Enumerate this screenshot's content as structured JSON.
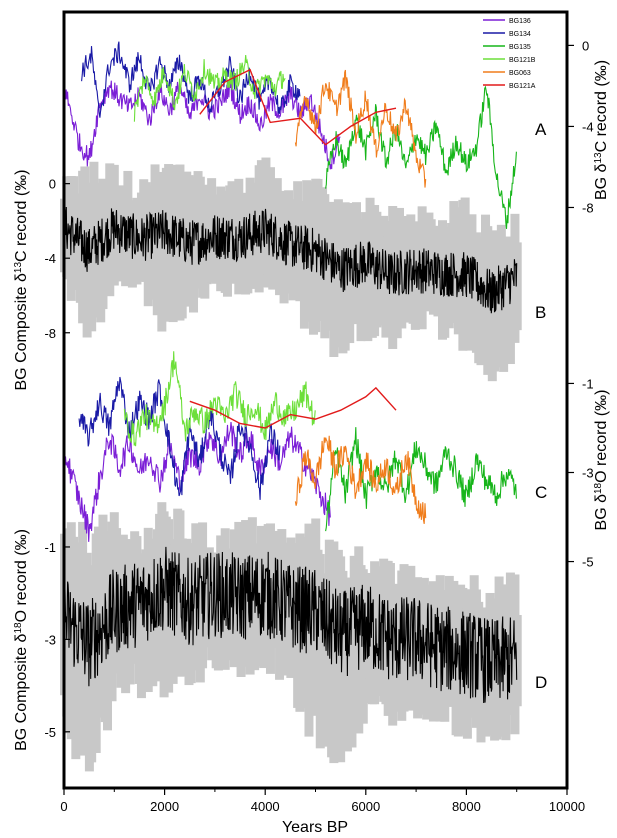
{
  "chart_data": {
    "type": "line",
    "x_axis": {
      "label": "Years BP",
      "range": [
        0,
        10000
      ],
      "ticks": [
        "0",
        "2000",
        "4000",
        "6000",
        "8000",
        "10000"
      ]
    },
    "left_axes": [
      {
        "label": "BG Composite δ13C record (‰)",
        "label_parts": [
          "BG Composite δ",
          "13",
          "C record (‰)"
        ],
        "range": [
          -11.5,
          1.0
        ],
        "ticks": [
          0,
          -4,
          -8
        ]
      },
      {
        "label": "BG Composite δ18O record (‰)",
        "label_parts": [
          "BG Composite δ",
          "18",
          "O record (‰)"
        ],
        "range": [
          -6.0,
          -0.2
        ],
        "ticks": [
          -1,
          -3,
          -5
        ]
      }
    ],
    "right_axes": [
      {
        "label": "BG δ13C record (‰)",
        "label_parts": [
          "BG δ",
          "13",
          "C record (‰)"
        ],
        "range": [
          -10.0,
          1.5
        ],
        "ticks": [
          0,
          -4,
          -8
        ]
      },
      {
        "label": "BG δ18O record (‰)",
        "label_parts": [
          "BG δ",
          "18",
          "O record (‰)"
        ],
        "range": [
          -6.2,
          0.2
        ],
        "ticks": [
          -1,
          -3,
          -5
        ]
      }
    ],
    "panel_labels": [
      "A",
      "B",
      "C",
      "D"
    ],
    "legend": {
      "placement": "top-right",
      "entries": [
        {
          "name": "BG136",
          "color": "#7b1fd6"
        },
        {
          "name": "BG134",
          "color": "#1a1aa6"
        },
        {
          "name": "BG135",
          "color": "#17b51a"
        },
        {
          "name": "BG121B",
          "color": "#6ddf3a"
        },
        {
          "name": "BG063",
          "color": "#f07d1c"
        },
        {
          "name": "BG121A",
          "color": "#e21b1b"
        }
      ]
    },
    "panels": {
      "A": {
        "kind": "individual",
        "y_axis": "right_0",
        "series": [
          {
            "name": "BG136",
            "color": "#7b1fd6",
            "x": [
              30,
              300,
              500,
              700,
              900,
              1100,
              1300,
              1500,
              1700,
              1900,
              2100,
              2300,
              2500,
              2700,
              2900,
              3100,
              3300,
              3500,
              3700,
              3900,
              4100,
              4300,
              4500,
              4700,
              4900,
              5100,
              5300,
              5500
            ],
            "y": [
              -2.3,
              -4.8,
              -5.6,
              -3.0,
              -2.0,
              -2.6,
              -3.1,
              -2.5,
              -3.7,
              -2.2,
              -3.2,
              -2.0,
              -3.6,
              -2.4,
              -3.3,
              -2.9,
              -2.0,
              -3.4,
              -2.8,
              -4.0,
              -2.8,
              -3.3,
              -2.4,
              -3.4,
              -2.6,
              -4.2,
              -5.8,
              -4.4
            ]
          },
          {
            "name": "BG134",
            "color": "#1a1aa6",
            "x": [
              350,
              550,
              700,
              900,
              1100,
              1300,
              1500,
              1700,
              1900,
              2100,
              2300,
              2500,
              2700,
              2900,
              3100,
              3300,
              3500,
              3700,
              3900,
              4100,
              4300,
              4500,
              4700
            ],
            "y": [
              -1.3,
              -0.5,
              -3.5,
              -1.0,
              -0.3,
              -1.9,
              -0.6,
              -2.4,
              -0.8,
              -2.0,
              -0.7,
              -2.6,
              -1.6,
              -3.1,
              -2.1,
              -1.0,
              -2.7,
              -1.2,
              -2.9,
              -1.6,
              -3.3,
              -1.9,
              -2.4
            ]
          },
          {
            "name": "BG135",
            "color": "#17b51a",
            "x": [
              5200,
              5400,
              5600,
              5800,
              6000,
              6200,
              6400,
              6600,
              6800,
              7000,
              7200,
              7400,
              7600,
              7800,
              8000,
              8200,
              8400,
              8600,
              8800,
              9000
            ],
            "y": [
              -6.8,
              -4.6,
              -6.0,
              -3.6,
              -5.2,
              -3.3,
              -5.8,
              -4.1,
              -6.1,
              -4.4,
              -5.5,
              -3.9,
              -6.3,
              -4.7,
              -5.9,
              -5.0,
              -2.0,
              -6.5,
              -8.7,
              -5.3
            ]
          },
          {
            "name": "BG121B",
            "color": "#6ddf3a",
            "x": [
              1400,
              1600,
              1800,
              2000,
              2200,
              2400,
              2600,
              2800,
              3000,
              3200,
              3400,
              3600,
              3800,
              4000,
              4200,
              4400
            ],
            "y": [
              -3.3,
              -1.6,
              -2.7,
              -1.2,
              -2.9,
              -1.3,
              -2.4,
              -1.1,
              -2.0,
              -1.5,
              -1.8,
              -0.9,
              -2.3,
              -1.6,
              -2.1,
              -1.4
            ]
          },
          {
            "name": "BG063",
            "color": "#f07d1c",
            "x": [
              4600,
              4800,
              5000,
              5200,
              5400,
              5600,
              5800,
              6000,
              6200,
              6400,
              6600,
              6800,
              7000,
              7200
            ],
            "y": [
              -5.0,
              -2.4,
              -4.1,
              -1.8,
              -3.2,
              -1.6,
              -4.4,
              -2.5,
              -5.2,
              -3.0,
              -4.6,
              -2.8,
              -5.5,
              -6.8
            ]
          },
          {
            "name": "BG121A",
            "color": "#e21b1b",
            "x": [
              2700,
              3200,
              3700,
              4100,
              4700,
              5200,
              5700,
              6200,
              6600
            ],
            "y": [
              -3.4,
              -1.8,
              -1.2,
              -3.8,
              -3.6,
              -4.9,
              -4.0,
              -3.3,
              -3.1
            ]
          }
        ]
      },
      "B": {
        "kind": "composite",
        "y_axis": "left_0",
        "x": [
          0,
          500,
          1000,
          1500,
          2000,
          2500,
          3000,
          3500,
          4000,
          4500,
          5000,
          5500,
          6000,
          6500,
          7000,
          7500,
          8000,
          8500,
          9000
        ],
        "mean": [
          -2.3,
          -3.6,
          -2.4,
          -3.0,
          -2.6,
          -3.2,
          -2.8,
          -2.9,
          -2.5,
          -3.3,
          -3.6,
          -4.6,
          -4.2,
          -4.9,
          -4.6,
          -4.8,
          -4.9,
          -5.9,
          -5.0
        ],
        "lower": [
          -5.0,
          -7.5,
          -5.5,
          -5.0,
          -7.0,
          -6.0,
          -5.5,
          -5.3,
          -5.0,
          -6.0,
          -7.5,
          -8.5,
          -7.5,
          -8.0,
          -7.0,
          -7.5,
          -8.0,
          -9.5,
          -8.5
        ],
        "upper": [
          -0.5,
          0.2,
          0.3,
          -0.5,
          0.4,
          -0.2,
          -0.5,
          -0.4,
          0.5,
          -0.7,
          -0.8,
          -2.0,
          -1.5,
          -2.2,
          -2.0,
          -2.3,
          -1.5,
          -3.0,
          -2.5
        ]
      },
      "C": {
        "kind": "individual",
        "y_axis": "right_1",
        "series": [
          {
            "name": "BG136",
            "color": "#7b1fd6",
            "x": [
              30,
              300,
              500,
              700,
              900,
              1100,
              1300,
              1500,
              1700,
              1900,
              2100,
              2300,
              2500,
              2700,
              2900,
              3100,
              3300,
              3500,
              3700,
              3900,
              4100,
              4300,
              4500,
              4700,
              4900,
              5100,
              5300
            ],
            "y": [
              -2.6,
              -3.6,
              -4.3,
              -3.2,
              -2.2,
              -2.9,
              -2.3,
              -3.0,
              -2.6,
              -3.2,
              -2.4,
              -3.2,
              -2.6,
              -2.8,
              -2.1,
              -2.7,
              -2.0,
              -2.6,
              -2.2,
              -3.0,
              -2.4,
              -2.8,
              -2.2,
              -2.6,
              -3.0,
              -3.5,
              -4.0
            ]
          },
          {
            "name": "BG134",
            "color": "#1a1aa6",
            "x": [
              300,
              500,
              700,
              900,
              1100,
              1300,
              1500,
              1700,
              1900,
              2100,
              2300,
              2500,
              2700,
              2900,
              3100,
              3300,
              3500,
              3700,
              3900,
              4100,
              4300
            ],
            "y": [
              -1.8,
              -2.2,
              -1.4,
              -2.0,
              -0.9,
              -2.1,
              -1.4,
              -1.8,
              -1.1,
              -2.4,
              -3.6,
              -2.0,
              -2.8,
              -1.6,
              -2.5,
              -3.2,
              -1.9,
              -2.4,
              -3.4,
              -2.1,
              -2.6
            ]
          },
          {
            "name": "BG135",
            "color": "#17b51a",
            "x": [
              5200,
              5400,
              5600,
              5800,
              6000,
              6200,
              6400,
              6600,
              6800,
              7000,
              7200,
              7400,
              7600,
              7800,
              8000,
              8200,
              8400,
              8600,
              8800,
              9000
            ],
            "y": [
              -4.3,
              -2.5,
              -3.5,
              -2.2,
              -3.6,
              -2.9,
              -3.4,
              -2.6,
              -3.5,
              -2.4,
              -2.9,
              -3.3,
              -2.5,
              -3.0,
              -3.6,
              -2.7,
              -3.2,
              -3.5,
              -3.0,
              -3.4
            ]
          },
          {
            "name": "BG121B",
            "color": "#6ddf3a",
            "x": [
              1200,
              1400,
              1600,
              1800,
              2000,
              2200,
              2400,
              2600,
              2800,
              3000,
              3200,
              3400,
              3600,
              3800,
              4000,
              4200,
              4400,
              4600,
              4800,
              5000
            ],
            "y": [
              -1.8,
              -2.2,
              -1.7,
              -2.0,
              -1.5,
              -0.4,
              -2.1,
              -1.6,
              -1.9,
              -1.4,
              -1.8,
              -1.2,
              -1.7,
              -1.5,
              -2.1,
              -1.4,
              -1.8,
              -1.6,
              -1.2,
              -1.9
            ]
          },
          {
            "name": "BG063",
            "color": "#f07d1c",
            "x": [
              4600,
              4800,
              5000,
              5200,
              5400,
              5600,
              5800,
              6000,
              6200,
              6400,
              6600,
              6800,
              7000,
              7200
            ],
            "y": [
              -3.7,
              -2.6,
              -3.2,
              -2.2,
              -2.9,
              -2.5,
              -3.4,
              -2.7,
              -3.3,
              -2.8,
              -3.5,
              -2.6,
              -3.6,
              -4.0
            ]
          },
          {
            "name": "BG121A",
            "color": "#e21b1b",
            "x": [
              2500,
              3000,
              3500,
              4000,
              4500,
              5000,
              5500,
              6000,
              6200,
              6600
            ],
            "y": [
              -1.4,
              -1.6,
              -1.9,
              -2.0,
              -1.7,
              -1.8,
              -1.6,
              -1.3,
              -1.1,
              -1.6
            ]
          }
        ]
      },
      "D": {
        "kind": "composite",
        "y_axis": "left_1",
        "x": [
          0,
          500,
          1000,
          1500,
          2000,
          2500,
          3000,
          3500,
          4000,
          4500,
          5000,
          5500,
          6000,
          6500,
          7000,
          7500,
          8000,
          8500,
          9000
        ],
        "mean": [
          -2.5,
          -3.1,
          -2.4,
          -2.2,
          -1.9,
          -2.2,
          -2.0,
          -2.1,
          -2.0,
          -2.3,
          -2.4,
          -2.9,
          -2.7,
          -3.0,
          -3.0,
          -3.2,
          -3.3,
          -3.5,
          -3.4
        ],
        "lower": [
          -4.5,
          -5.5,
          -4.0,
          -3.8,
          -3.7,
          -3.6,
          -3.3,
          -3.4,
          -3.2,
          -3.8,
          -4.8,
          -5.2,
          -4.2,
          -4.5,
          -4.3,
          -4.4,
          -4.8,
          -5.0,
          -4.8
        ],
        "upper": [
          -1.1,
          -1.1,
          -0.8,
          -1.0,
          -0.5,
          -0.8,
          -1.0,
          -0.8,
          -0.7,
          -1.1,
          -1.0,
          -1.5,
          -1.4,
          -1.8,
          -1.8,
          -2.0,
          -1.9,
          -2.1,
          -2.0
        ]
      }
    }
  }
}
